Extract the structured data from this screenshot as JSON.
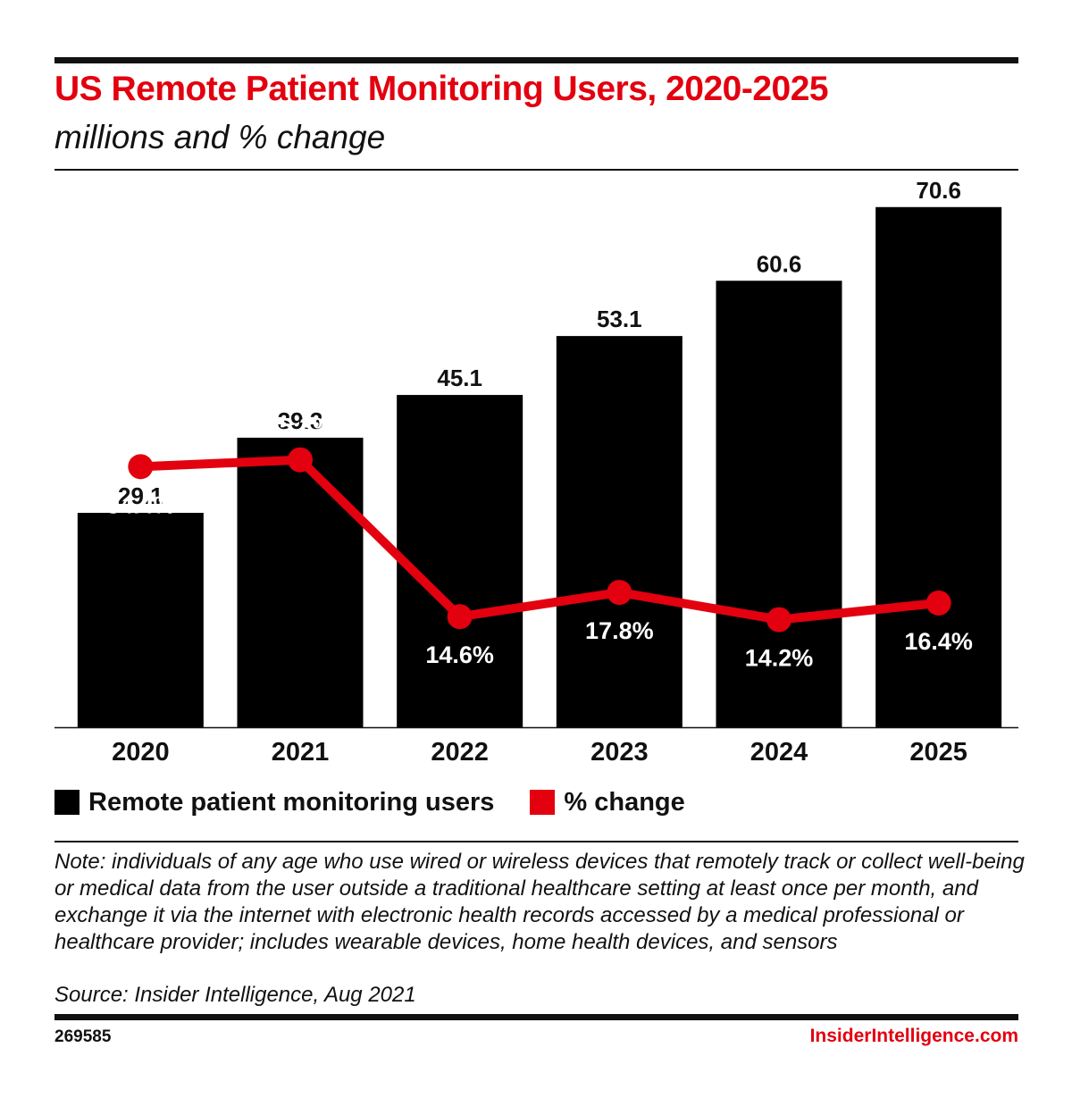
{
  "header": {
    "title": "US Remote Patient Monitoring Users, 2020-2025",
    "subtitle": "millions and % change"
  },
  "colors": {
    "accent": "#e3000f",
    "bar": "#000000",
    "text": "#111111"
  },
  "chart_data": {
    "type": "bar",
    "title": "US Remote Patient Monitoring Users, 2020-2025",
    "subtitle": "millions and % change",
    "categories": [
      "2020",
      "2021",
      "2022",
      "2023",
      "2024",
      "2025"
    ],
    "series": [
      {
        "name": "Remote patient monitoring users",
        "type": "bar",
        "values": [
          29.1,
          39.3,
          45.1,
          53.1,
          60.6,
          70.6
        ],
        "labels": [
          "29.1",
          "39.3",
          "45.1",
          "53.1",
          "60.6",
          "70.6"
        ],
        "color": "#000000"
      },
      {
        "name": "% change",
        "type": "line",
        "values": [
          34.4,
          35.3,
          14.6,
          17.8,
          14.2,
          16.4
        ],
        "labels": [
          "34.4%",
          "35.3%",
          "14.6%",
          "17.8%",
          "14.2%",
          "16.4%"
        ],
        "color": "#e3000f"
      }
    ],
    "bar_ylim": [
      0,
      73
    ],
    "line_ylim": [
      0,
      71
    ],
    "legend_position": "bottom-left",
    "grid": false
  },
  "legend": {
    "items": [
      {
        "label": "Remote patient monitoring users",
        "color": "#000000"
      },
      {
        "label": "% change",
        "color": "#e3000f"
      }
    ]
  },
  "footer": {
    "note": "Note: individuals of any age who use wired or wireless devices that remotely track or collect well-being or medical data from the user outside a traditional healthcare setting at least once per month, and exchange it via the internet with electronic health records accessed by a medical professional or healthcare provider; includes wearable devices, home health devices, and sensors",
    "source": "Source: Insider Intelligence, Aug 2021",
    "chart_id": "269585",
    "brand": "InsiderIntelligence.com"
  }
}
